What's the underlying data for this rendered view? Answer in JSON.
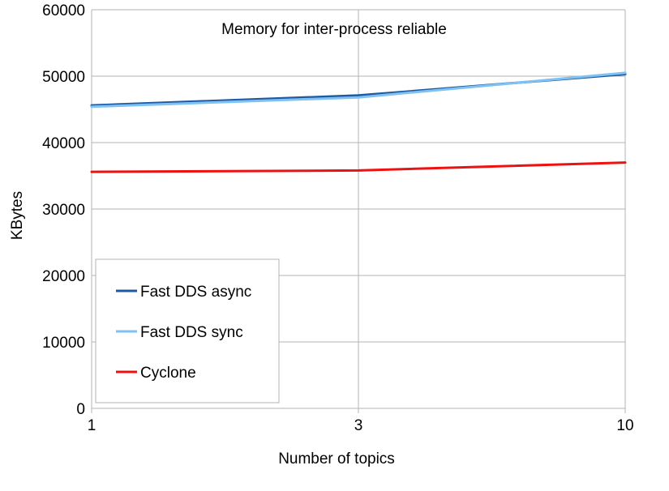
{
  "chart_data": {
    "type": "line",
    "title": "Memory for inter-process reliable",
    "xlabel": "Number of topics",
    "ylabel": "KBytes",
    "categories": [
      "1",
      "3",
      "10"
    ],
    "ylim": [
      0,
      60000
    ],
    "yticks": [
      0,
      10000,
      20000,
      30000,
      40000,
      50000,
      60000
    ],
    "grid": true,
    "legend_position": "bottom-left",
    "series": [
      {
        "name": "Fast DDS async",
        "color": "#1f5aa0",
        "values": [
          45600,
          47100,
          50300
        ]
      },
      {
        "name": "Fast DDS sync",
        "color": "#7fc1f2",
        "values": [
          45400,
          46800,
          50500
        ]
      },
      {
        "name": "Cyclone",
        "color": "#ee1111",
        "values": [
          35600,
          35800,
          37000
        ]
      }
    ]
  }
}
